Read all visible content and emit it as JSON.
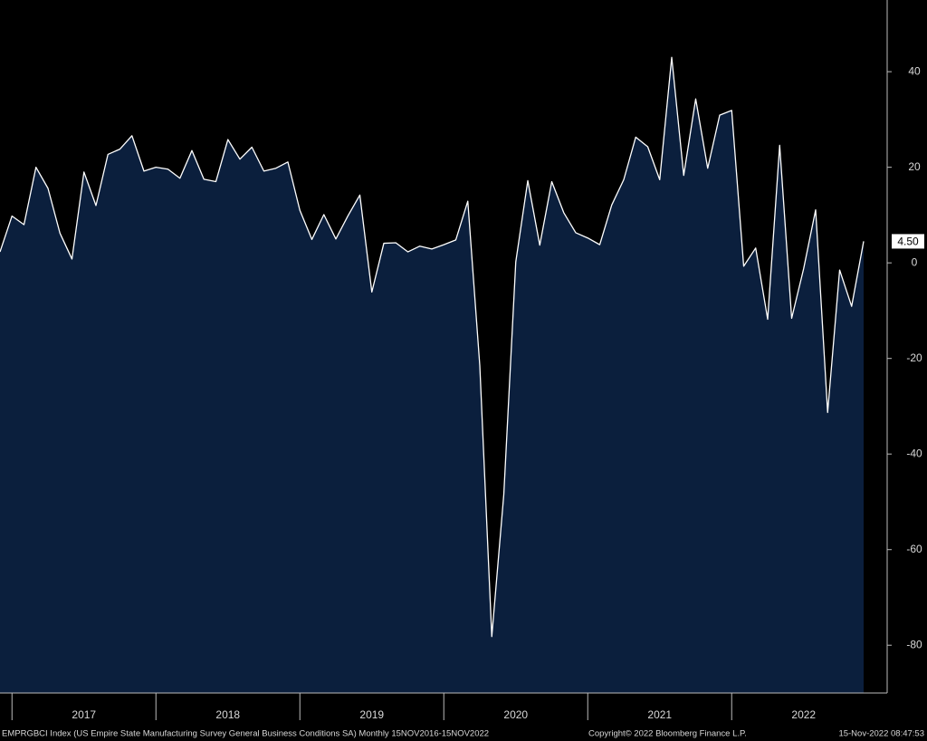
{
  "chart_data": {
    "type": "area",
    "categories": [
      null,
      null,
      null,
      null,
      null,
      null,
      null,
      "2017",
      null,
      null,
      null,
      null,
      null,
      null,
      null,
      null,
      null,
      null,
      null,
      "2018",
      null,
      null,
      null,
      null,
      null,
      null,
      null,
      null,
      null,
      null,
      null,
      "2019",
      null,
      null,
      null,
      null,
      null,
      null,
      null,
      null,
      null,
      null,
      null,
      "2020",
      null,
      null,
      null,
      null,
      null,
      null,
      null,
      null,
      null,
      null,
      null,
      "2021",
      null,
      null,
      null,
      null,
      null,
      null,
      null,
      null,
      null,
      null,
      null,
      "2022",
      null,
      null,
      null,
      null,
      null
    ],
    "series": [
      {
        "color": "#ffffff",
        "fill": "#0b1f3d",
        "values": [
          2.3,
          9.8,
          8,
          20,
          15.6,
          6.2,
          0.8,
          19,
          12,
          22.7,
          23.8,
          26.6,
          19.2,
          20,
          19.6,
          17.7,
          23.5,
          17.5,
          17,
          25.8,
          21.7,
          24.2,
          19.2,
          19.8,
          21.1,
          11,
          4.9,
          10.1,
          5,
          9.8,
          14.2,
          -6.1,
          4.1,
          4.2,
          2.3,
          3.5,
          2.9,
          3.8,
          4.8,
          12.9,
          -21.5,
          -78.2,
          -48.5,
          0.2,
          17.2,
          3.7,
          17,
          10.5,
          6.3,
          5.2,
          3.8,
          12.1,
          17.4,
          26.3,
          24.3,
          17.4,
          43,
          18.3,
          34.3,
          19.8,
          30.9,
          31.9,
          -0.7,
          3.1,
          -11.8,
          24.6,
          -11.6,
          -1.2,
          11.1,
          -31.3,
          -1.5,
          -9.1,
          4.5
        ],
        "value_labels": [
          null,
          null,
          null,
          null,
          null,
          null,
          null,
          null,
          null,
          null,
          null,
          null,
          null,
          null,
          null,
          null,
          null,
          null,
          null,
          null,
          null,
          null,
          null,
          null,
          null,
          null,
          null,
          null,
          null,
          null,
          null,
          null,
          null,
          null,
          null,
          null,
          null,
          null,
          null,
          null,
          null,
          null,
          null,
          null,
          null,
          null,
          null,
          null,
          null,
          null,
          null,
          null,
          null,
          null,
          null,
          null,
          null,
          null,
          null,
          null,
          null,
          null,
          null,
          null,
          null,
          null,
          null,
          null,
          null,
          null,
          null,
          null,
          "4.50"
        ]
      }
    ],
    "ylim": [
      -90,
      55
    ],
    "yticks": [
      40,
      20,
      0,
      -20,
      -40,
      -60,
      -80
    ],
    "source": "EMPRGBCI Index (US Empire State Manufacturing Survey General Business Conditions SA)  Monthly 15NOV2016-15NOV2022",
    "copyright": "Copyright© 2022 Bloomberg Finance L.P.",
    "timestamp": "15-Nov-2022 08:47:53"
  }
}
